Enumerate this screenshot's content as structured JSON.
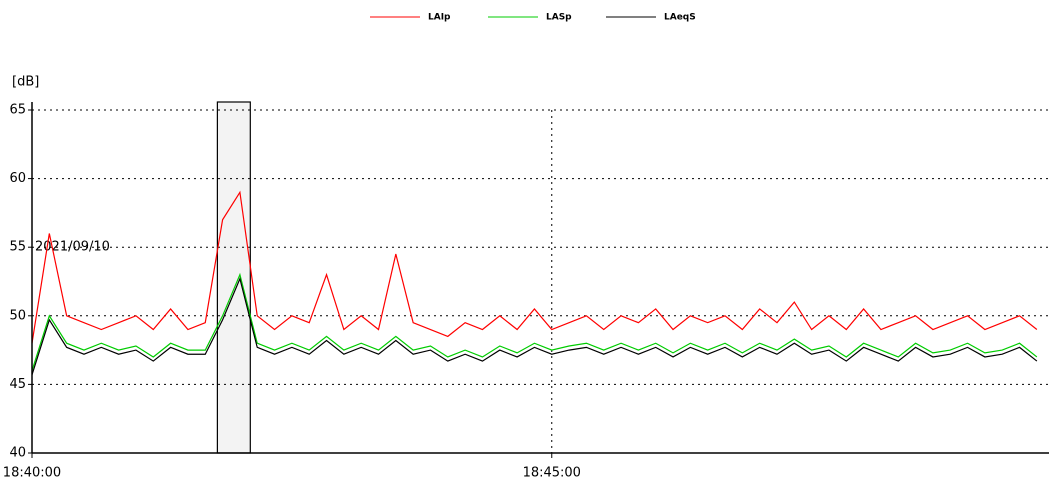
{
  "chart_data": {
    "type": "line",
    "y_label": "[dB]",
    "annotation": "2021/09/10",
    "x": [
      0,
      10,
      20,
      30,
      40,
      50,
      60,
      70,
      80,
      90,
      100,
      110,
      120,
      130,
      140,
      150,
      160,
      170,
      180,
      190,
      200,
      210,
      220,
      230,
      240,
      250,
      260,
      270,
      280,
      290,
      300,
      310,
      320,
      330,
      340,
      350,
      360,
      370,
      380,
      390,
      400,
      410,
      420,
      430,
      440,
      450,
      460,
      470,
      480,
      490,
      500,
      510,
      520,
      530,
      540,
      550,
      560,
      570,
      580
    ],
    "series": [
      {
        "name": "LAIp",
        "color": "#ff0000",
        "values": [
          48,
          56,
          50,
          49.5,
          49,
          49.5,
          50,
          49,
          50.5,
          49,
          49.5,
          57,
          59,
          50,
          49,
          50,
          49.5,
          53,
          49,
          50,
          49,
          54.5,
          49.5,
          49,
          48.5,
          49.5,
          49,
          50,
          49,
          50.5,
          49,
          49.5,
          50,
          49,
          50,
          49.5,
          50.5,
          49,
          50,
          49.5,
          50,
          49,
          50.5,
          49.5,
          51,
          49,
          50,
          49,
          50.5,
          49,
          49.5,
          50,
          49,
          49.5,
          50,
          49,
          49.5,
          50,
          49
        ]
      },
      {
        "name": "LASp",
        "color": "#00cc00",
        "values": [
          46,
          50,
          48,
          47.5,
          48,
          47.5,
          47.8,
          47,
          48,
          47.5,
          47.5,
          50,
          53,
          48,
          47.5,
          48,
          47.5,
          48.5,
          47.5,
          48,
          47.5,
          48.5,
          47.5,
          47.8,
          47,
          47.5,
          47,
          47.8,
          47.3,
          48,
          47.5,
          47.8,
          48,
          47.5,
          48,
          47.5,
          48,
          47.3,
          48,
          47.5,
          48,
          47.3,
          48,
          47.5,
          48.3,
          47.5,
          47.8,
          47,
          48,
          47.5,
          47,
          48,
          47.3,
          47.5,
          48,
          47.3,
          47.5,
          48,
          47
        ]
      },
      {
        "name": "LAeqS",
        "color": "#000000",
        "values": [
          45.7,
          49.7,
          47.7,
          47.2,
          47.7,
          47.2,
          47.5,
          46.7,
          47.7,
          47.2,
          47.2,
          49.7,
          52.7,
          47.7,
          47.2,
          47.7,
          47.2,
          48.2,
          47.2,
          47.7,
          47.2,
          48.2,
          47.2,
          47.5,
          46.7,
          47.2,
          46.7,
          47.5,
          47,
          47.7,
          47.2,
          47.5,
          47.7,
          47.2,
          47.7,
          47.2,
          47.7,
          47,
          47.7,
          47.2,
          47.7,
          47,
          47.7,
          47.2,
          48,
          47.2,
          47.5,
          46.7,
          47.7,
          47.2,
          46.7,
          47.7,
          47,
          47.2,
          47.7,
          47,
          47.2,
          47.7,
          46.7
        ]
      }
    ],
    "selection_xlim": [
      107,
      126
    ],
    "xlim": [
      0,
      587
    ],
    "xticks": [
      {
        "value": 0,
        "label": "18:40:00"
      },
      {
        "value": 300,
        "label": "18:45:00"
      }
    ],
    "ylim": [
      40,
      65
    ],
    "yticks": [
      40,
      45,
      50,
      55,
      60,
      65
    ],
    "grid": true
  }
}
